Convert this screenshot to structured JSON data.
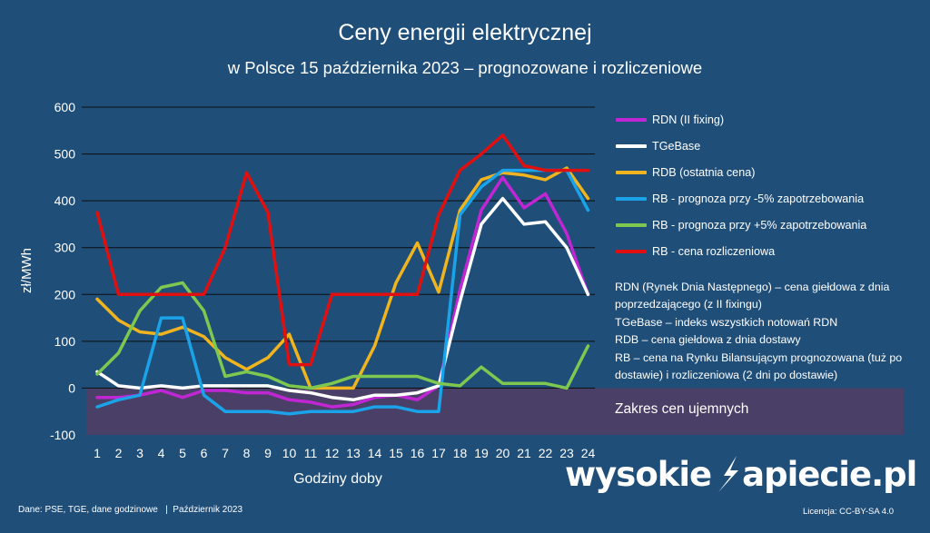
{
  "header": {
    "title": "Ceny energii elektrycznej",
    "subtitle": "w Polsce 15 października 2023 – prognozowane i rozliczeniowe"
  },
  "chart_data": {
    "type": "line",
    "ylabel": "zł/MWh",
    "xlabel": "Godziny doby",
    "ylim": [
      -100,
      600
    ],
    "yticks": [
      -100,
      0,
      100,
      200,
      300,
      400,
      500,
      600
    ],
    "grid": true,
    "categories": [
      1,
      2,
      3,
      4,
      5,
      6,
      7,
      8,
      9,
      10,
      11,
      12,
      13,
      14,
      15,
      16,
      17,
      18,
      19,
      20,
      21,
      22,
      23,
      24
    ],
    "negative_band": {
      "from": -100,
      "to": 0,
      "label": "Zakres cen ujemnych",
      "color": "#4a3f66"
    },
    "series": [
      {
        "name": "RDN (II fixing)",
        "color": "#c026d3",
        "values": [
          -20,
          -20,
          -15,
          -5,
          -20,
          -5,
          -5,
          -10,
          -10,
          -25,
          -30,
          -40,
          -35,
          -20,
          -15,
          -25,
          5,
          210,
          380,
          450,
          385,
          415,
          330,
          200
        ]
      },
      {
        "name": "TGeBase",
        "color": "#ffffff",
        "values": [
          35,
          5,
          0,
          5,
          0,
          5,
          5,
          5,
          5,
          -5,
          -10,
          -20,
          -25,
          -15,
          -15,
          -10,
          5,
          185,
          350,
          405,
          350,
          355,
          300,
          200
        ]
      },
      {
        "name": "RDB (ostatnia cena)",
        "color": "#f0b41e",
        "values": [
          190,
          145,
          120,
          115,
          130,
          110,
          65,
          40,
          65,
          115,
          0,
          0,
          0,
          90,
          225,
          310,
          205,
          380,
          445,
          460,
          455,
          445,
          470,
          405
        ]
      },
      {
        "name": "RB - prognoza przy -5% zapotrzebowania",
        "color": "#1aa3e8",
        "values": [
          -40,
          -25,
          -15,
          150,
          150,
          -15,
          -50,
          -50,
          -50,
          -55,
          -50,
          -50,
          -50,
          -40,
          -40,
          -50,
          -50,
          370,
          430,
          465,
          465,
          465,
          465,
          380
        ]
      },
      {
        "name": "RB - prognoza przy +5% zapotrzebowania",
        "color": "#7ec850",
        "values": [
          30,
          75,
          165,
          215,
          225,
          165,
          25,
          35,
          25,
          5,
          0,
          10,
          25,
          25,
          25,
          25,
          10,
          5,
          45,
          10,
          10,
          10,
          0,
          90
        ]
      },
      {
        "name": "RB - cena rozliczeniowa",
        "color": "#e01010",
        "values": [
          375,
          200,
          200,
          200,
          200,
          200,
          300,
          460,
          375,
          50,
          50,
          200,
          200,
          200,
          200,
          200,
          370,
          465,
          500,
          540,
          475,
          465,
          465,
          465
        ]
      }
    ]
  },
  "notes": [
    "RDN (Rynek Dnia Następnego) – cena giełdowa z dnia poprzedzającego (z II fixingu)",
    "TGeBase – indeks wszystkich notowań RDN",
    "RDB – cena giełdowa z dnia dostawy",
    "RB – cena na Rynku Bilansującym prognozowana (tuż po dostawie) i rozliczeniowa (2 dni po dostawie)"
  ],
  "footer": {
    "source": "Dane: PSE, TGE, dane godzinowe   |  Październik 2023",
    "license": "Licencja: CC-BY-SA 4.0",
    "logo_left": "wysokie",
    "logo_right": "apiecie.pl"
  }
}
